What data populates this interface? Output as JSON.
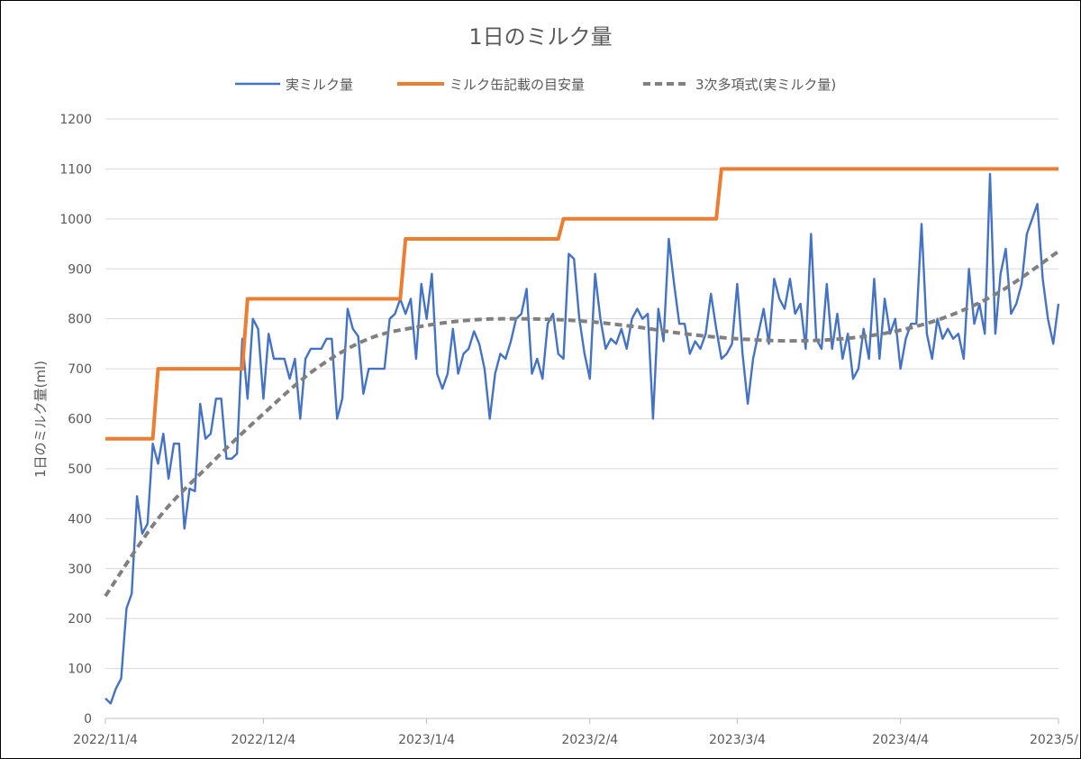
{
  "chart_data": {
    "type": "line",
    "title": "1日のミルク量",
    "ylabel": "1日のミルク量(ml)",
    "xlabel": "",
    "x_start": "2022/11/4",
    "ylim": [
      0,
      1200
    ],
    "y_ticks": [
      0,
      100,
      200,
      300,
      400,
      500,
      600,
      700,
      800,
      900,
      1000,
      1100,
      1200
    ],
    "x_ticks": [
      {
        "label": "2022/11/4",
        "day": 0
      },
      {
        "label": "2022/12/4",
        "day": 30
      },
      {
        "label": "2023/1/4",
        "day": 61
      },
      {
        "label": "2023/2/4",
        "day": 92
      },
      {
        "label": "2023/3/4",
        "day": 120
      },
      {
        "label": "2023/4/4",
        "day": 151
      },
      {
        "label": "2023/5/",
        "day": 181
      }
    ],
    "grid": "horizontal",
    "legend_position": "top",
    "series": [
      {
        "name": "実ミルク量",
        "color": "#4472C4",
        "style": "solid",
        "days": [
          0,
          1,
          2,
          3,
          4,
          5,
          6,
          7,
          8,
          9,
          10,
          11,
          12,
          13,
          14,
          15,
          16,
          17,
          18,
          19,
          20,
          21,
          22,
          23,
          24,
          25,
          26,
          27,
          28,
          29,
          30,
          31,
          32,
          33,
          34,
          35,
          36,
          37,
          38,
          39,
          40,
          41,
          42,
          43,
          44,
          45,
          46,
          47,
          48,
          49,
          50,
          51,
          52,
          53,
          54,
          55,
          56,
          57,
          58,
          59,
          60,
          61,
          62,
          63,
          64,
          65,
          66,
          67,
          68,
          69,
          70,
          71,
          72,
          73,
          74,
          75,
          76,
          77,
          78,
          79,
          80,
          81,
          82,
          83,
          84,
          85,
          86,
          87,
          88,
          89,
          90,
          91,
          92,
          93,
          94,
          95,
          96,
          97,
          98,
          99,
          100,
          101,
          102,
          103,
          104,
          105,
          106,
          107,
          108,
          109,
          110,
          111,
          112,
          113,
          114,
          115,
          116,
          117,
          118,
          119,
          120,
          121,
          122,
          123,
          124,
          125,
          126,
          127,
          128,
          129,
          130,
          131,
          132,
          133,
          134,
          135,
          136,
          137,
          138,
          139,
          140,
          141,
          142,
          143,
          144,
          145,
          146,
          147,
          148,
          149,
          150,
          151,
          152,
          153,
          154,
          155,
          156,
          157,
          158,
          159,
          160,
          161,
          162,
          163,
          164,
          165,
          166,
          167,
          168,
          169,
          170,
          171,
          172,
          173,
          174,
          175,
          176,
          177,
          178,
          179,
          180,
          181
        ],
        "values": [
          40,
          30,
          60,
          80,
          220,
          250,
          445,
          370,
          390,
          550,
          510,
          570,
          480,
          550,
          550,
          380,
          460,
          455,
          630,
          560,
          570,
          640,
          640,
          520,
          520,
          530,
          760,
          640,
          800,
          780,
          640,
          770,
          720,
          720,
          720,
          680,
          720,
          600,
          720,
          740,
          740,
          740,
          760,
          760,
          600,
          640,
          820,
          780,
          765,
          650,
          700,
          700,
          700,
          700,
          800,
          810,
          840,
          810,
          840,
          720,
          870,
          800,
          890,
          690,
          660,
          690,
          780,
          690,
          730,
          740,
          775,
          750,
          700,
          600,
          690,
          730,
          720,
          755,
          800,
          810,
          860,
          690,
          720,
          680,
          790,
          810,
          730,
          720,
          930,
          920,
          800,
          730,
          680,
          890,
          800,
          740,
          760,
          750,
          780,
          740,
          800,
          820,
          800,
          810,
          600,
          820,
          755,
          960,
          870,
          790,
          790,
          730,
          755,
          740,
          770,
          850,
          780,
          720,
          730,
          750,
          870,
          730,
          630,
          720,
          770,
          820,
          750,
          880,
          840,
          820,
          880,
          810,
          830,
          740,
          970,
          760,
          740,
          870,
          740,
          810,
          720,
          770,
          680,
          700,
          780,
          720,
          880,
          720,
          840,
          770,
          800,
          700,
          760,
          790,
          790,
          990,
          770,
          720,
          800,
          760,
          780,
          760,
          770,
          720,
          900,
          790,
          830,
          770,
          1090,
          770,
          890,
          940,
          810,
          830,
          870,
          970,
          1000,
          1030,
          880,
          800,
          750,
          830
        ]
      },
      {
        "name": "ミルク缶記載の目安量",
        "color": "#ED7D31",
        "style": "step",
        "steps": [
          {
            "from": 0,
            "to": 9,
            "value": 560
          },
          {
            "from": 10,
            "to": 26,
            "value": 700
          },
          {
            "from": 27,
            "to": 56,
            "value": 840
          },
          {
            "from": 57,
            "to": 86,
            "value": 960
          },
          {
            "from": 87,
            "to": 116,
            "value": 1000
          },
          {
            "from": 117,
            "to": 181,
            "value": 1100
          }
        ]
      },
      {
        "name": "3次多項式(実ミルク量)",
        "color": "#808080",
        "style": "dashed",
        "days": [
          0,
          10,
          20,
          30,
          40,
          50,
          60,
          70,
          80,
          90,
          100,
          110,
          120,
          130,
          140,
          150,
          160,
          170,
          181
        ],
        "values": [
          245,
          400,
          510,
          610,
          700,
          760,
          785,
          798,
          800,
          796,
          785,
          770,
          760,
          756,
          760,
          775,
          805,
          855,
          935
        ]
      }
    ]
  }
}
